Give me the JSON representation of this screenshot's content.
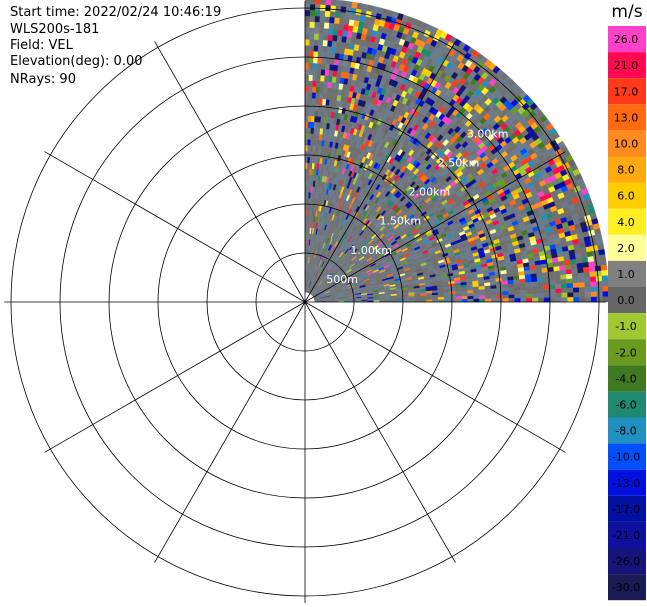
{
  "header": {
    "start_time": "Start time: 2022/02/24 10:46:19",
    "instrument": "WLS200s-181",
    "field": "Field: VEL",
    "elevation": "Elevation(deg): 0.00",
    "nrays": "NRays: 90"
  },
  "chart_data": {
    "type": "heatmap",
    "projection": "polar-ppi",
    "field": "VEL",
    "units": "m/s",
    "sector_deg": [
      0,
      90
    ],
    "range_rings": [
      "500m",
      "1.00km",
      "1.50km",
      "2.00km",
      "2.50km",
      "3.00km"
    ],
    "range_rings_km": [
      0.5,
      1.0,
      1.5,
      2.0,
      2.5,
      3.0
    ],
    "spokes_every_deg": 30,
    "colorbar": {
      "label": "m/s",
      "ticks": [
        "26.0",
        "21.0",
        "17.0",
        "13.0",
        "10.0",
        "8.0",
        "6.0",
        "4.0",
        "2.0",
        "1.0",
        "0.0",
        "-1.0",
        "-2.0",
        "-4.0",
        "-6.0",
        "-8.0",
        "-10.0",
        "-13.0",
        "-17.0",
        "-21.0",
        "-26.0",
        "-30.0"
      ],
      "colors": [
        "#ff40c8",
        "#ff0a50",
        "#ff3a1a",
        "#ff6a10",
        "#ff8a1e",
        "#ffaa10",
        "#ffcc00",
        "#ffee22",
        "#ffff99",
        "#808080",
        "#666666",
        "#a0c830",
        "#6a9a20",
        "#3f7a20",
        "#208a70",
        "#2090c0",
        "#0050ff",
        "#0010e0",
        "#0010a0",
        "#1010a0",
        "#14147a",
        "#1a1a55"
      ]
    }
  }
}
